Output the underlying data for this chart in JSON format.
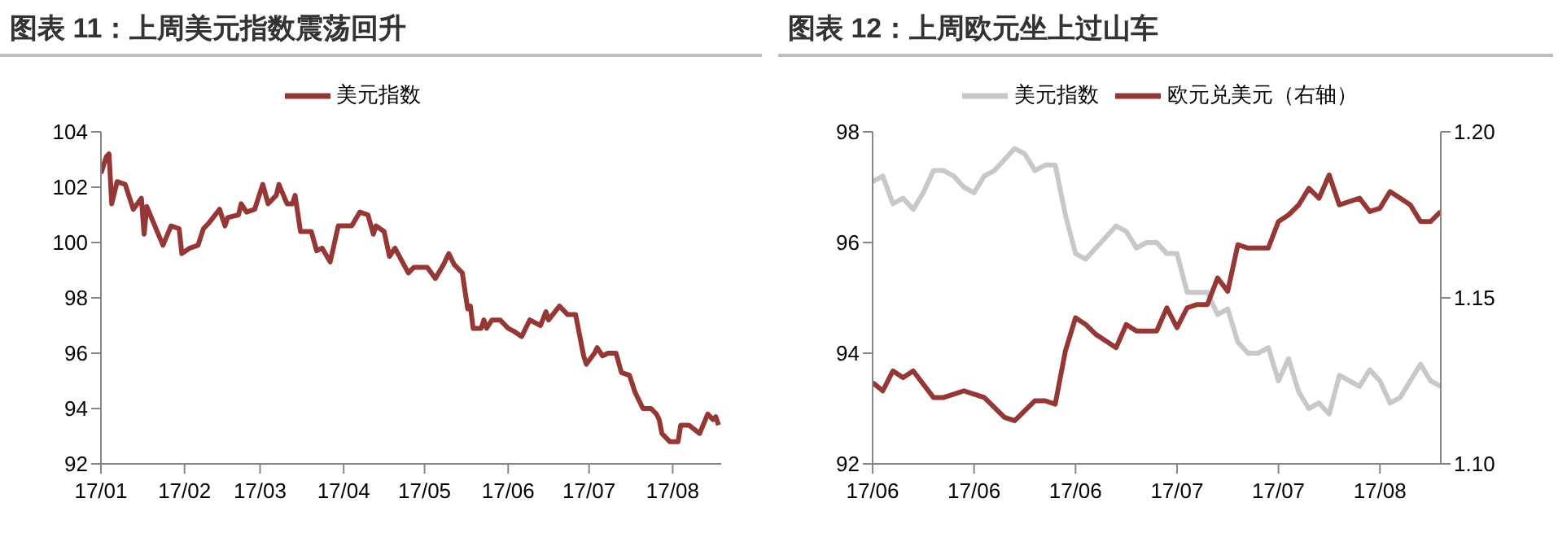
{
  "chart_data": [
    {
      "type": "line",
      "title": "图表 11：上周美元指数震荡回升",
      "legend": "top",
      "grid": false,
      "x": [
        "--01-01",
        "--01-03",
        "--01-04",
        "--01-05",
        "--01-07",
        "--01-10",
        "--01-13",
        "--01-16",
        "--01-17",
        "--01-18",
        "--01-21",
        "--01-24",
        "--01-27",
        "--01-30",
        "--01-31",
        "--02-03",
        "--02-06",
        "--02-08",
        "--02-10",
        "--02-14",
        "--02-16",
        "--02-17",
        "--02-21",
        "--02-22",
        "--02-24",
        "--02-27",
        "--03-02",
        "--03-04",
        "--03-07",
        "--03-08",
        "--03-11",
        "--03-13",
        "--03-14",
        "--03-16",
        "--03-20",
        "--03-22",
        "--03-24",
        "--03-27",
        "--03-30",
        "--04-04",
        "--04-07",
        "--04-10",
        "--04-12",
        "--04-13",
        "--04-16",
        "--04-18",
        "--04-20",
        "--04-25",
        "--04-27",
        "--05-02",
        "--05-05",
        "--05-08",
        "--05-10",
        "--05-12",
        "--05-15",
        "--05-17",
        "--05-18",
        "--05-19",
        "--05-22",
        "--05-23",
        "--05-24",
        "--05-26",
        "--05-29",
        "--06-01",
        "--06-03",
        "--06-06",
        "--06-09",
        "--06-13",
        "--06-15",
        "--06-16",
        "--06-20",
        "--06-23",
        "--06-26",
        "--06-29",
        "--06-30",
        "--07-03",
        "--07-04",
        "--07-06",
        "--07-08",
        "--07-11",
        "--07-13",
        "--07-16",
        "--07-18",
        "--07-21",
        "--07-24",
        "--07-26",
        "--07-27",
        "--07-28",
        "--07-31",
        "--08-03",
        "--08-04",
        "--08-07",
        "--08-11",
        "--08-14",
        "--08-16",
        "--08-17",
        "--08-18"
      ],
      "series": [
        {
          "name": "美元指数",
          "color": "#953735",
          "values": [
            102.5,
            103.1,
            103.2,
            101.4,
            102.2,
            102.1,
            101.2,
            101.6,
            100.3,
            101.3,
            100.6,
            99.9,
            100.6,
            100.5,
            99.6,
            99.8,
            99.9,
            100.5,
            100.7,
            101.2,
            100.6,
            100.9,
            101.0,
            101.4,
            101.1,
            101.2,
            102.1,
            101.4,
            101.7,
            102.1,
            101.4,
            101.4,
            101.7,
            100.4,
            100.4,
            99.7,
            99.8,
            99.3,
            100.6,
            100.6,
            101.1,
            101.0,
            100.3,
            100.6,
            100.4,
            99.5,
            99.8,
            98.9,
            99.1,
            99.1,
            98.7,
            99.2,
            99.6,
            99.2,
            98.9,
            97.6,
            97.7,
            96.9,
            96.9,
            97.2,
            96.9,
            97.2,
            97.2,
            96.9,
            96.8,
            96.6,
            97.2,
            97.0,
            97.5,
            97.2,
            97.7,
            97.4,
            97.4,
            95.9,
            95.6,
            96.0,
            96.2,
            95.9,
            96.0,
            96.0,
            95.3,
            95.2,
            94.6,
            94.0,
            94.0,
            93.8,
            93.6,
            93.1,
            92.8,
            92.8,
            93.4,
            93.4,
            93.1,
            93.8,
            93.6,
            93.7,
            93.4
          ]
        }
      ],
      "xlim": [
        "--01-01",
        "--08-19"
      ],
      "xticks": [
        {
          "value": "--01-01",
          "label": "17/01"
        },
        {
          "value": "--02-01",
          "label": "17/02"
        },
        {
          "value": "--03-01",
          "label": "17/03"
        },
        {
          "value": "--04-01",
          "label": "17/04"
        },
        {
          "value": "--05-01",
          "label": "17/05"
        },
        {
          "value": "--06-01",
          "label": "17/06"
        },
        {
          "value": "--07-01",
          "label": "17/07"
        },
        {
          "value": "--08-01",
          "label": "17/08"
        }
      ],
      "ylim": [
        92,
        104
      ],
      "yticks": [
        92,
        94,
        96,
        98,
        100,
        102,
        104
      ]
    },
    {
      "type": "line",
      "title": "图表 12：上周欧元坐上过山车",
      "legend": "top",
      "grid": false,
      "categories": [
        "17/06",
        null,
        null,
        null,
        null,
        null,
        null,
        null,
        null,
        null,
        "17/06",
        null,
        null,
        null,
        null,
        null,
        null,
        null,
        null,
        null,
        "17/06",
        null,
        null,
        null,
        null,
        null,
        null,
        null,
        null,
        null,
        "17/07",
        null,
        null,
        null,
        null,
        null,
        null,
        null,
        null,
        null,
        "17/07",
        null,
        null,
        null,
        null,
        null,
        null,
        null,
        null,
        null,
        "17/08",
        null,
        null,
        null,
        null,
        null,
        null
      ],
      "series": [
        {
          "name": "美元指数",
          "color": "#c8c8c8",
          "values": [
            97.1,
            97.2,
            96.7,
            96.8,
            96.6,
            96.9,
            97.3,
            97.3,
            97.2,
            97.0,
            96.9,
            97.2,
            97.3,
            97.5,
            97.7,
            97.6,
            97.3,
            97.4,
            97.4,
            96.5,
            95.8,
            95.7,
            95.9,
            96.1,
            96.3,
            96.2,
            95.9,
            96.0,
            96.0,
            95.8,
            95.8,
            95.1,
            95.1,
            95.1,
            94.7,
            94.8,
            94.2,
            94.0,
            94.0,
            94.1,
            93.5,
            93.9,
            93.3,
            93.0,
            93.1,
            92.9,
            93.6,
            93.5,
            93.4,
            93.7,
            93.5,
            93.1,
            93.2,
            93.5,
            93.8,
            93.5,
            93.4
          ]
        },
        {
          "name": "欧元兑美元（右轴）",
          "color": "#953735",
          "axis": "y2",
          "values": [
            1.1245,
            1.122,
            1.128,
            1.126,
            1.128,
            1.124,
            1.12,
            1.12,
            1.121,
            1.122,
            1.121,
            1.12,
            1.117,
            1.114,
            1.113,
            1.116,
            1.119,
            1.119,
            1.118,
            1.134,
            1.144,
            1.142,
            1.139,
            1.137,
            1.135,
            1.142,
            1.14,
            1.14,
            1.14,
            1.147,
            1.141,
            1.147,
            1.148,
            1.148,
            1.156,
            1.152,
            1.166,
            1.165,
            1.165,
            1.165,
            1.173,
            1.175,
            1.178,
            1.183,
            1.18,
            1.187,
            1.178,
            1.179,
            1.18,
            1.176,
            1.177,
            1.182,
            1.18,
            1.178,
            1.173,
            1.173,
            1.176
          ]
        }
      ],
      "ylim": [
        92,
        98
      ],
      "yticks": [
        92,
        94,
        96,
        98
      ],
      "y2lim": [
        1.1,
        1.2
      ],
      "y2ticks": [
        {
          "value": 1.1,
          "label": "1.10"
        },
        {
          "value": 1.15,
          "label": "1.15"
        },
        {
          "value": 1.2,
          "label": "1.20"
        }
      ]
    }
  ]
}
